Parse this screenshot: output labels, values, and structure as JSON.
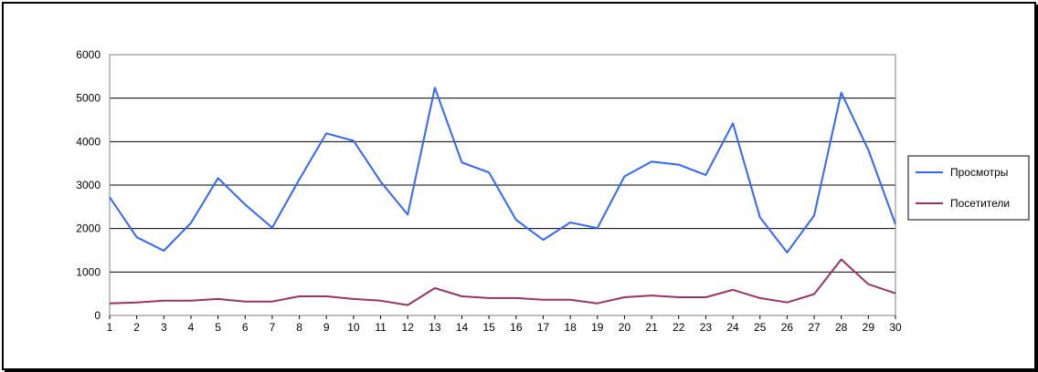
{
  "chart_data": {
    "type": "line",
    "title": "",
    "xlabel": "",
    "ylabel": "",
    "x": [
      1,
      2,
      3,
      4,
      5,
      6,
      7,
      8,
      9,
      10,
      11,
      12,
      13,
      14,
      15,
      16,
      17,
      18,
      19,
      20,
      21,
      22,
      23,
      24,
      25,
      26,
      27,
      28,
      29,
      30
    ],
    "ylim": [
      0,
      6000
    ],
    "yticks": [
      0,
      1000,
      2000,
      3000,
      4000,
      5000,
      6000
    ],
    "grid": true,
    "legend": "right",
    "series": [
      {
        "name": "Просмотры",
        "color": "#3366ff",
        "values": [
          2720,
          1800,
          1490,
          2130,
          3160,
          2550,
          2020,
          3130,
          4190,
          4020,
          3080,
          2320,
          5240,
          3520,
          3290,
          2200,
          1740,
          2140,
          2010,
          3200,
          3540,
          3470,
          3230,
          4420,
          2260,
          1450,
          2300,
          5130,
          3810,
          2100
        ]
      },
      {
        "name": "Посетители",
        "color": "#993366",
        "values": [
          280,
          300,
          340,
          340,
          380,
          320,
          320,
          440,
          440,
          380,
          340,
          240,
          630,
          440,
          400,
          400,
          360,
          360,
          280,
          420,
          460,
          420,
          420,
          590,
          400,
          300,
          490,
          1290,
          720,
          510
        ]
      }
    ]
  }
}
